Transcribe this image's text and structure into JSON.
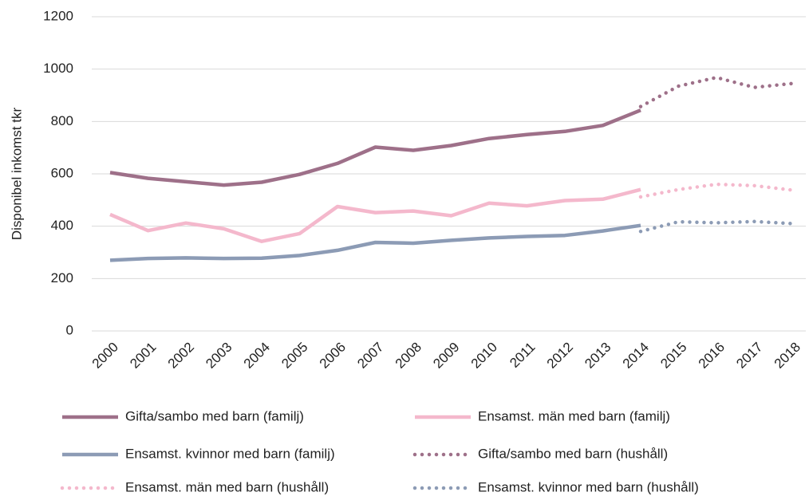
{
  "chart_data": {
    "type": "line",
    "y_label": "Disponibel inkomst tkr",
    "categories": [
      "2000",
      "2001",
      "2002",
      "2003",
      "2004",
      "2005",
      "2006",
      "2007",
      "2008",
      "2009",
      "2010",
      "2011",
      "2012",
      "2013",
      "2014",
      "2015",
      "2016",
      "2017",
      "2018"
    ],
    "ylim": [
      0,
      1200
    ],
    "yticks": [
      0,
      200,
      400,
      600,
      800,
      1000,
      1200
    ],
    "grid": true,
    "series": [
      {
        "name": "Gifta/sambo med barn (familj)",
        "color": "#9e7089",
        "style": "solid",
        "values": [
          605,
          583,
          570,
          557,
          568,
          598,
          640,
          702,
          690,
          708,
          735,
          750,
          762,
          785,
          843,
          null,
          null,
          null,
          null
        ]
      },
      {
        "name": "Ensamst. män med barn (familj)",
        "color": "#f4b8cc",
        "style": "solid",
        "values": [
          445,
          383,
          412,
          390,
          342,
          372,
          475,
          452,
          458,
          440,
          488,
          478,
          498,
          503,
          540,
          null,
          null,
          null,
          null
        ]
      },
      {
        "name": "Ensamst. kvinnor med barn (familj)",
        "color": "#8c9bb5",
        "style": "solid",
        "values": [
          270,
          277,
          279,
          277,
          278,
          288,
          308,
          338,
          335,
          346,
          355,
          361,
          365,
          382,
          403,
          null,
          null,
          null,
          null
        ]
      },
      {
        "name": "Gifta/sambo med barn (hushåll)",
        "color": "#9e7089",
        "style": "dotted",
        "values": [
          null,
          null,
          null,
          null,
          null,
          null,
          null,
          null,
          null,
          null,
          null,
          null,
          null,
          null,
          857,
          935,
          968,
          930,
          945
        ]
      },
      {
        "name": "Ensamst. män med barn (hushåll)",
        "color": "#f4b8cc",
        "style": "dotted",
        "values": [
          null,
          null,
          null,
          null,
          null,
          null,
          null,
          null,
          null,
          null,
          null,
          null,
          null,
          null,
          512,
          540,
          560,
          555,
          538
        ]
      },
      {
        "name": "Ensamst. kvinnor med barn (hushåll)",
        "color": "#8c9bb5",
        "style": "dotted",
        "values": [
          null,
          null,
          null,
          null,
          null,
          null,
          null,
          null,
          null,
          null,
          null,
          null,
          null,
          null,
          380,
          417,
          413,
          418,
          410
        ]
      }
    ]
  }
}
